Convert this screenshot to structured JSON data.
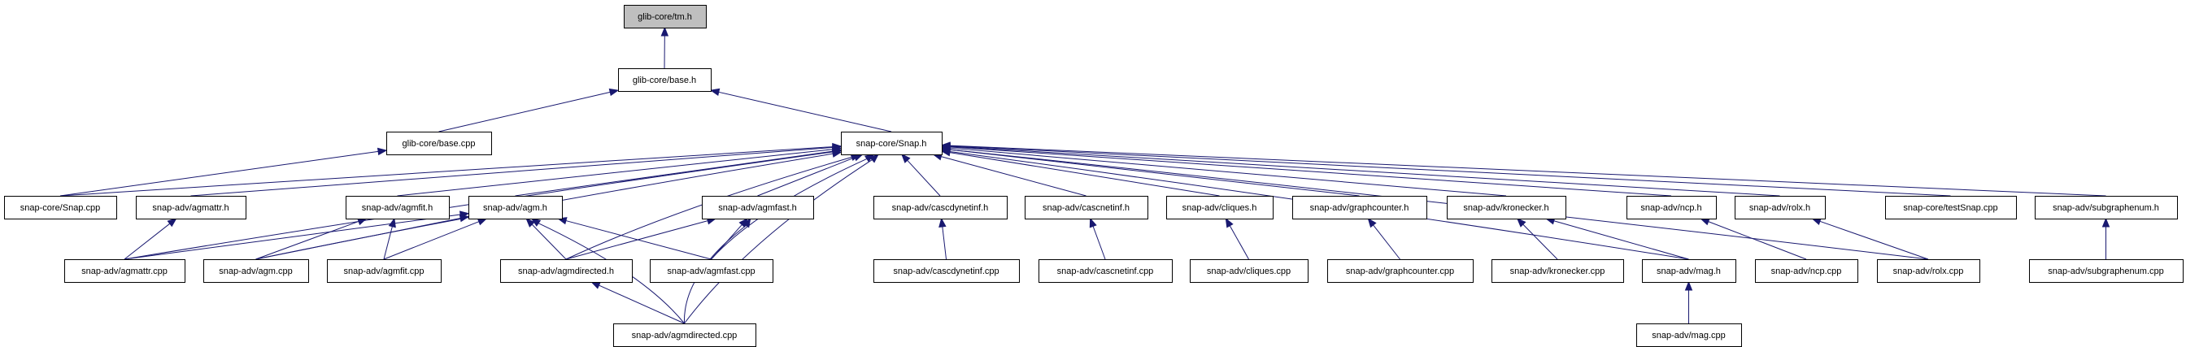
{
  "graph": {
    "edge_color": "#191970",
    "root_fill": "#bfbfbf",
    "root": "tm_h",
    "nodes": {
      "tm_h": "glib-core/tm.h",
      "base_h": "glib-core/base.h",
      "base_cpp": "glib-core/base.cpp",
      "snap_h": "snap-core/Snap.h",
      "snap_cpp": "snap-core/Snap.cpp",
      "agmattr_h": "snap-adv/agmattr.h",
      "agmfit_h": "snap-adv/agmfit.h",
      "agm_h": "snap-adv/agm.h",
      "agmfast_h": "snap-adv/agmfast.h",
      "cascdynetinf_h": "snap-adv/cascdynetinf.h",
      "cascnetinf_h": "snap-adv/cascnetinf.h",
      "cliques_h": "snap-adv/cliques.h",
      "graphcounter_h": "snap-adv/graphcounter.h",
      "kronecker_h": "snap-adv/kronecker.h",
      "ncp_h": "snap-adv/ncp.h",
      "rolx_h": "snap-adv/rolx.h",
      "testsnap_cpp": "snap-core/testSnap.cpp",
      "subgraphenum_h": "snap-adv/subgraphenum.h",
      "agmattr_cpp": "snap-adv/agmattr.cpp",
      "agm_cpp": "snap-adv/agm.cpp",
      "agmfit_cpp": "snap-adv/agmfit.cpp",
      "agmdirected_h": "snap-adv/agmdirected.h",
      "agmfast_cpp": "snap-adv/agmfast.cpp",
      "cascdynetinf_cpp": "snap-adv/cascdynetinf.cpp",
      "cascnetinf_cpp": "snap-adv/cascnetinf.cpp",
      "cliques_cpp": "snap-adv/cliques.cpp",
      "graphcounter_cpp": "snap-adv/graphcounter.cpp",
      "kronecker_cpp": "snap-adv/kronecker.cpp",
      "mag_h": "snap-adv/mag.h",
      "ncp_cpp": "snap-adv/ncp.cpp",
      "rolx_cpp": "snap-adv/rolx.cpp",
      "subgraphenum_cpp": "snap-adv/subgraphenum.cpp",
      "agmdirected_cpp": "snap-adv/agmdirected.cpp",
      "mag_cpp": "snap-adv/mag.cpp"
    },
    "edges": [
      [
        "base_h",
        "tm_h"
      ],
      [
        "base_cpp",
        "base_h"
      ],
      [
        "snap_h",
        "base_h"
      ],
      [
        "snap_cpp",
        "base_cpp"
      ],
      [
        "snap_cpp",
        "snap_h"
      ],
      [
        "agmattr_h",
        "snap_h"
      ],
      [
        "agmattr_cpp",
        "agmattr_h"
      ],
      [
        "agmattr_cpp",
        "snap_h"
      ],
      [
        "agmattr_cpp",
        "agm_h"
      ],
      [
        "agmfit_h",
        "snap_h"
      ],
      [
        "agm_cpp",
        "agmfit_h"
      ],
      [
        "agm_cpp",
        "agm_h"
      ],
      [
        "agm_cpp",
        "snap_h"
      ],
      [
        "agmfit_cpp",
        "agmfit_h"
      ],
      [
        "agmfit_cpp",
        "agm_h"
      ],
      [
        "agm_h",
        "snap_h"
      ],
      [
        "agmdirected_h",
        "agm_h"
      ],
      [
        "agmdirected_h",
        "agmfast_h"
      ],
      [
        "agmdirected_h",
        "snap_h"
      ],
      [
        "agmfast_cpp",
        "agm_h"
      ],
      [
        "agmfast_cpp",
        "agmfast_h"
      ],
      [
        "agmfast_cpp",
        "snap_h"
      ],
      [
        "agmdirected_cpp",
        "agm_h"
      ],
      [
        "agmdirected_cpp",
        "agmdirected_h"
      ],
      [
        "agmdirected_cpp",
        "agmfast_h"
      ],
      [
        "agmdirected_cpp",
        "snap_h"
      ],
      [
        "agmfast_h",
        "snap_h"
      ],
      [
        "cascdynetinf_h",
        "snap_h"
      ],
      [
        "cascdynetinf_cpp",
        "cascdynetinf_h"
      ],
      [
        "cascnetinf_h",
        "snap_h"
      ],
      [
        "cascnetinf_cpp",
        "cascnetinf_h"
      ],
      [
        "cliques_h",
        "snap_h"
      ],
      [
        "cliques_cpp",
        "cliques_h"
      ],
      [
        "graphcounter_h",
        "snap_h"
      ],
      [
        "graphcounter_cpp",
        "graphcounter_h"
      ],
      [
        "kronecker_h",
        "snap_h"
      ],
      [
        "kronecker_cpp",
        "kronecker_h"
      ],
      [
        "mag_h",
        "kronecker_h"
      ],
      [
        "mag_h",
        "snap_h"
      ],
      [
        "mag_cpp",
        "mag_h"
      ],
      [
        "ncp_h",
        "snap_h"
      ],
      [
        "ncp_cpp",
        "ncp_h"
      ],
      [
        "rolx_h",
        "snap_h"
      ],
      [
        "rolx_cpp",
        "rolx_h"
      ],
      [
        "rolx_cpp",
        "snap_h"
      ],
      [
        "testsnap_cpp",
        "snap_h"
      ],
      [
        "subgraphenum_h",
        "snap_h"
      ],
      [
        "subgraphenum_cpp",
        "subgraphenum_h"
      ]
    ]
  }
}
